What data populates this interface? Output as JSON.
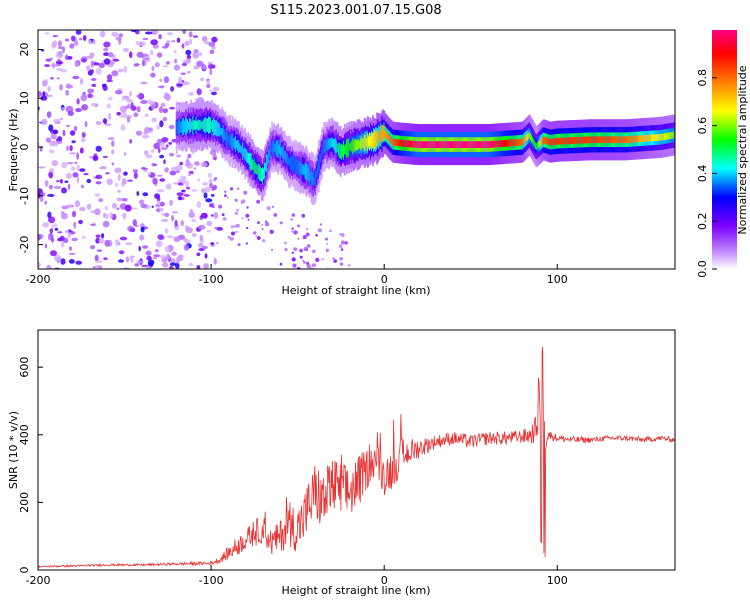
{
  "figure_title": "S115.2023.001.07.15.G08",
  "chart_data": [
    {
      "type": "heatmap",
      "title": "S115.2023.001.07.15.G08",
      "xlabel": "Height of straight line (km)",
      "ylabel": "Frequency (Hz)",
      "xlim": [
        -200,
        168
      ],
      "ylim": [
        -25,
        24
      ],
      "x_ticks": [
        "-200",
        "-100",
        "0",
        "100"
      ],
      "y_ticks": [
        "-20",
        "-10",
        "0",
        "10",
        "20"
      ],
      "colorbar": {
        "label": "Normalized spectral amplitude",
        "range": [
          0,
          1
        ],
        "ticks": [
          "0.0",
          "0.2",
          "0.4",
          "0.6",
          "0.8"
        ],
        "colors": [
          "#ffffff",
          "#7b00ff",
          "#0000ff",
          "#00ffff",
          "#00ff00",
          "#ffff00",
          "#ff7f00",
          "#ff0000",
          "#ff0080"
        ]
      },
      "ridge": {
        "x": [
          -120,
          -110,
          -100,
          -95,
          -90,
          -85,
          -80,
          -75,
          -70,
          -65,
          -60,
          -55,
          -50,
          -45,
          -40,
          -35,
          -30,
          -25,
          -20,
          -15,
          -10,
          -5,
          0,
          5,
          10,
          20,
          40,
          60,
          80,
          84,
          88,
          92,
          96,
          100,
          120,
          140,
          160,
          168
        ],
        "y": [
          4,
          4.5,
          4.5,
          3.5,
          1.5,
          0.5,
          -1.5,
          -4,
          -6,
          0,
          -0.5,
          -3,
          -4,
          -5,
          -7,
          0,
          1,
          -1,
          0,
          0.5,
          1,
          1.5,
          3,
          1,
          0.8,
          0.5,
          0.5,
          0.5,
          1,
          2.5,
          0,
          1.5,
          1,
          1.2,
          1.5,
          1.5,
          2,
          2.5
        ],
        "amplitude": [
          0.35,
          0.45,
          0.45,
          0.4,
          0.35,
          0.4,
          0.4,
          0.5,
          0.45,
          0.35,
          0.4,
          0.35,
          0.35,
          0.4,
          0.35,
          0.35,
          0.4,
          0.5,
          0.55,
          0.6,
          0.65,
          0.7,
          0.75,
          0.8,
          0.9,
          1.0,
          1.0,
          1.0,
          0.8,
          0.6,
          0.5,
          0.8,
          0.85,
          0.85,
          0.85,
          0.8,
          0.65,
          0.6
        ]
      },
      "noise": {
        "x_range": [
          -200,
          -100
        ],
        "y_range": [
          -25,
          24
        ],
        "amplitude": 0.15
      }
    },
    {
      "type": "line",
      "xlabel": "Height of straight line (km)",
      "ylabel": "SNR (10 * v/v)",
      "xlim": [
        -200,
        168
      ],
      "ylim": [
        0,
        710
      ],
      "x_ticks": [
        "-200",
        "-100",
        "0",
        "100"
      ],
      "y_ticks": [
        "0",
        "200",
        "400",
        "600"
      ],
      "color": "#e83232",
      "series": [
        {
          "name": "SNR",
          "x": [
            -200,
            -180,
            -160,
            -140,
            -120,
            -100,
            -95,
            -90,
            -85,
            -80,
            -75,
            -70,
            -65,
            -60,
            -55,
            -50,
            -45,
            -40,
            -35,
            -30,
            -25,
            -20,
            -15,
            -10,
            -5,
            0,
            5,
            10,
            15,
            20,
            25,
            30,
            40,
            50,
            60,
            70,
            80,
            85,
            88,
            90,
            91,
            92,
            93,
            95,
            100,
            110,
            120,
            130,
            140,
            150,
            160,
            168
          ],
          "y": [
            10,
            12,
            15,
            15,
            18,
            20,
            30,
            50,
            70,
            90,
            110,
            120,
            80,
            100,
            140,
            120,
            170,
            230,
            200,
            250,
            230,
            230,
            260,
            300,
            330,
            280,
            300,
            340,
            350,
            360,
            370,
            380,
            390,
            380,
            390,
            390,
            395,
            400,
            420,
            560,
            60,
            390,
            380,
            400,
            390,
            385,
            385,
            390,
            390,
            385,
            390,
            385
          ],
          "spread": [
            2,
            3,
            3,
            3,
            4,
            5,
            10,
            20,
            30,
            30,
            40,
            40,
            40,
            50,
            70,
            70,
            80,
            90,
            90,
            90,
            90,
            80,
            80,
            60,
            50,
            60,
            60,
            50,
            40,
            30,
            25,
            20,
            20,
            20,
            20,
            20,
            20,
            30,
            40,
            120,
            40,
            40,
            30,
            15,
            10,
            10,
            8,
            8,
            8,
            8,
            8,
            8
          ]
        }
      ]
    }
  ]
}
